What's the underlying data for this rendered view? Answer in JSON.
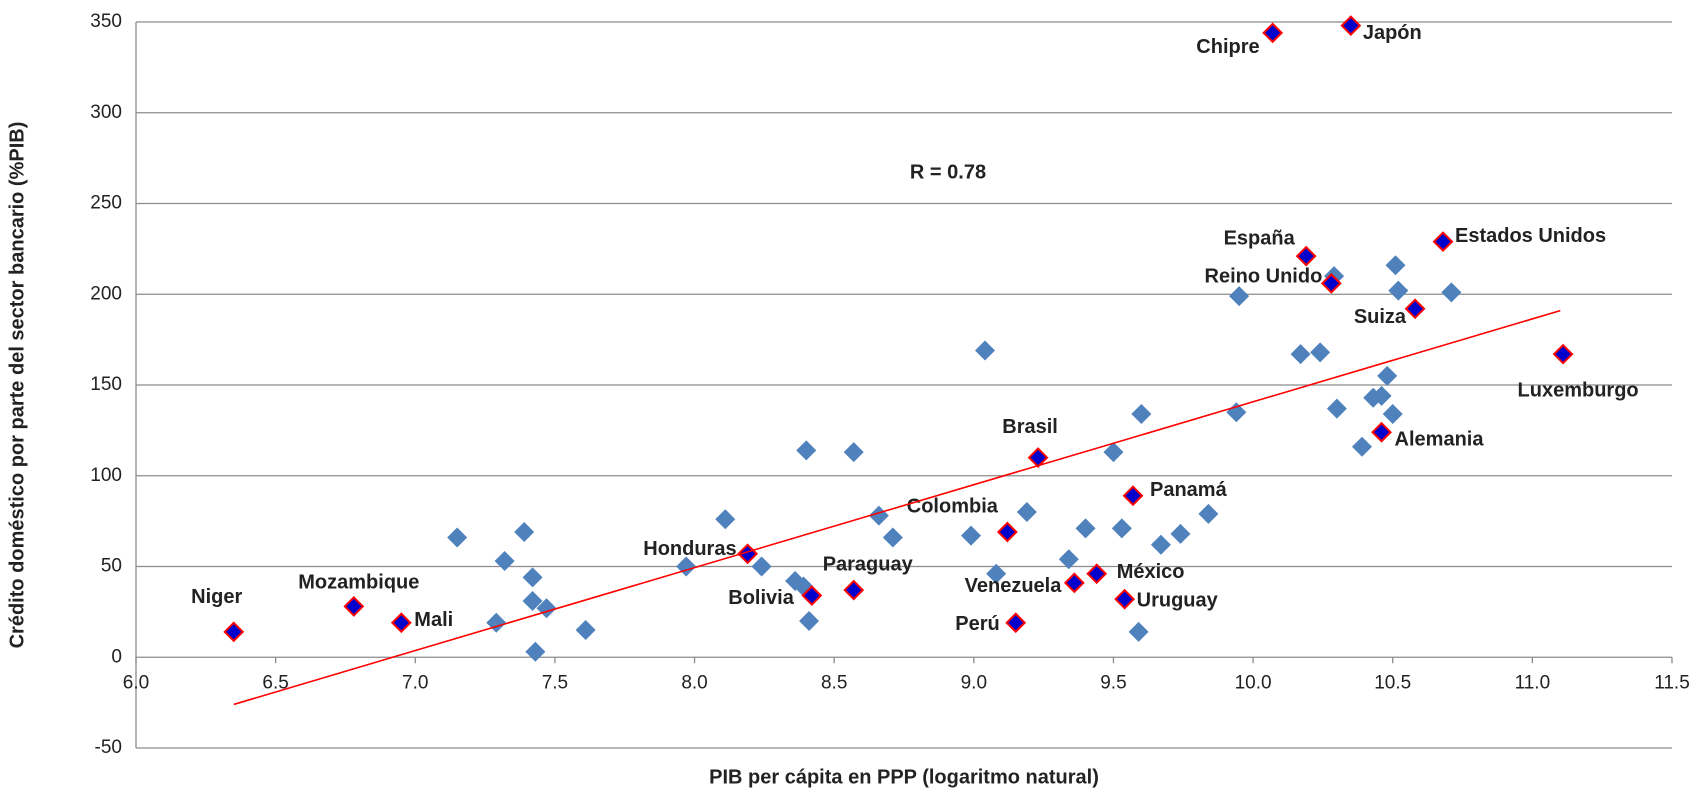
{
  "chart_data": {
    "type": "scatter",
    "x_label": "PIB per cápita en PPP (logaritmo natural)",
    "y_label": "Crédito doméstico por parte del sector bancario (%PIB)",
    "annotation": "R = 0.78",
    "xlim": [
      6,
      11.5
    ],
    "xticks": [
      {
        "value": 6,
        "label": "6.0"
      },
      6.5,
      {
        "value": 7,
        "label": "7.0"
      },
      7.5,
      {
        "value": 8,
        "label": "8.0"
      },
      8.5,
      {
        "value": 9,
        "label": "9.0"
      },
      9.5,
      {
        "value": 10,
        "label": "10.0"
      },
      10.5,
      {
        "value": 11,
        "label": "11.0"
      },
      11.5
    ],
    "ylim": [
      -50,
      350
    ],
    "yticks": [
      -50,
      0,
      50,
      100,
      150,
      200,
      250,
      300,
      350
    ],
    "grid": true,
    "series": [
      {
        "color": "#4f81bd",
        "x": [
          7.15,
          7.32,
          7.39,
          7.29,
          7.42,
          7.42,
          7.47,
          7.43,
          7.61,
          7.97,
          8.11,
          8.24,
          8.36,
          8.39,
          8.41,
          8.4,
          8.57,
          8.66,
          8.71,
          8.99,
          9.04,
          9.08,
          9.19,
          9.34,
          9.4,
          9.5,
          9.53,
          9.6,
          9.59,
          9.67,
          9.74,
          9.84,
          9.94,
          9.95,
          10.17,
          10.24,
          10.3,
          10.29,
          10.39,
          10.51,
          10.52,
          10.48,
          10.46,
          10.43,
          10.5,
          10.71
        ],
        "values": [
          66,
          53,
          69,
          19,
          44,
          31,
          27,
          3,
          15,
          50,
          76,
          50,
          42,
          39,
          20,
          114,
          113,
          78,
          66,
          67,
          169,
          46,
          80,
          54,
          71,
          113,
          71,
          134,
          14,
          62,
          68,
          79,
          135,
          199,
          167,
          168,
          137,
          210,
          116,
          216,
          202,
          155,
          144,
          143,
          134,
          201
        ]
      },
      {
        "color": "#0000cc",
        "edgecolor": "#ff0000",
        "labels": [
          "Niger",
          "Mozambique",
          "Mali",
          "Honduras",
          "Bolivia",
          "Paraguay",
          "Colombia",
          "Perú",
          "Brasil",
          "Venezuela",
          "México",
          "Uruguay",
          "Panamá",
          "Chipre",
          "Japón",
          "España",
          "Reino Unido",
          "Suiza",
          "Estados Unidos",
          "Alemania",
          "Luxemburgo"
        ],
        "x": [
          6.35,
          6.78,
          6.95,
          8.19,
          8.42,
          8.57,
          9.12,
          9.15,
          9.23,
          9.36,
          9.44,
          9.54,
          9.57,
          10.07,
          10.35,
          10.19,
          10.28,
          10.58,
          10.68,
          10.46,
          11.11
        ],
        "values": [
          14,
          28,
          19,
          57,
          34,
          37,
          69,
          19,
          110,
          41,
          46,
          32,
          89,
          344,
          348,
          221,
          206,
          192,
          229,
          124,
          167
        ]
      },
      {
        "type": "line",
        "color": "#ff0000",
        "x": [
          6.35,
          11.1
        ],
        "values": [
          -26,
          191
        ]
      }
    ]
  }
}
